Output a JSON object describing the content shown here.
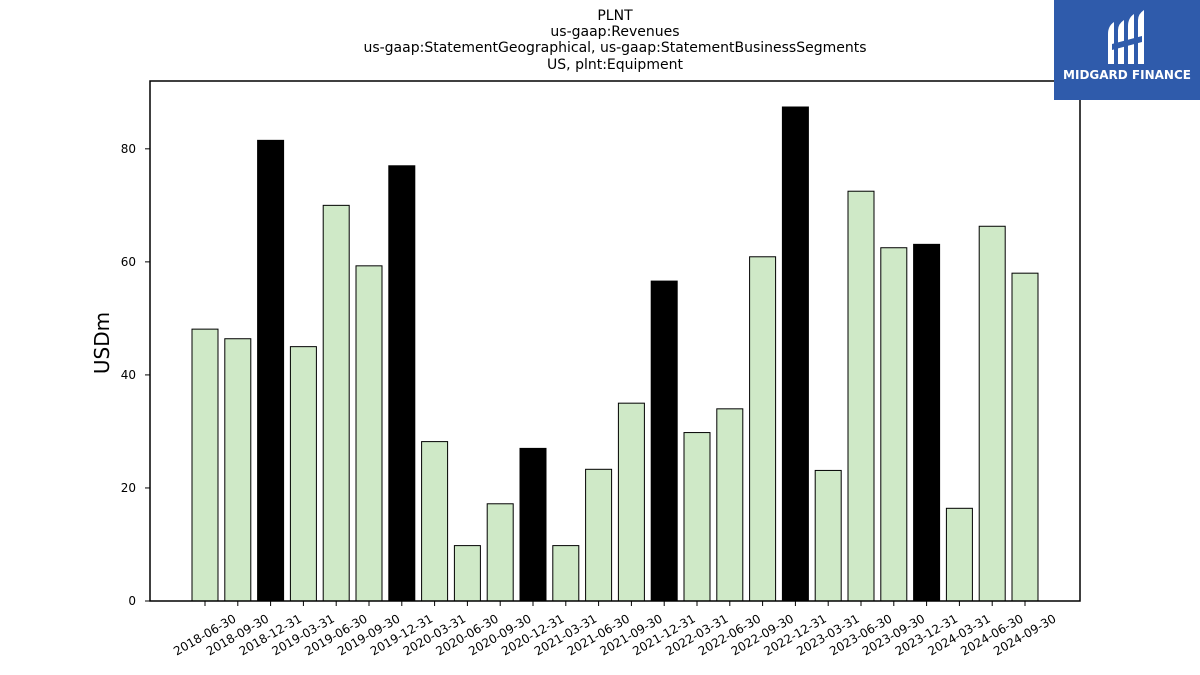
{
  "chart_data": {
    "type": "bar",
    "title_lines": [
      "PLNT",
      "us-gaap:Revenues",
      "us-gaap:StatementGeographical, us-gaap:StatementBusinessSegments",
      "US, plnt:Equipment"
    ],
    "ylabel": "USDm",
    "xlabel": "",
    "ylim": [
      0,
      92
    ],
    "yticks": [
      0,
      20,
      40,
      60,
      80
    ],
    "categories": [
      "2018-06-30",
      "2018-09-30",
      "2018-12-31",
      "2019-03-31",
      "2019-06-30",
      "2019-09-30",
      "2019-12-31",
      "2020-03-31",
      "2020-06-30",
      "2020-09-30",
      "2020-12-31",
      "2021-03-31",
      "2021-06-30",
      "2021-09-30",
      "2021-12-31",
      "2022-03-31",
      "2022-06-30",
      "2022-09-30",
      "2022-12-31",
      "2023-03-31",
      "2023-06-30",
      "2023-09-30",
      "2023-12-31",
      "2024-03-31",
      "2024-06-30",
      "2024-09-30"
    ],
    "values": [
      48.1,
      46.4,
      81.5,
      45.0,
      70.0,
      59.3,
      77.0,
      28.2,
      9.8,
      17.2,
      27.0,
      9.8,
      23.3,
      35.0,
      56.6,
      29.8,
      34.0,
      60.9,
      87.4,
      23.1,
      72.5,
      62.5,
      63.1,
      16.4,
      66.3,
      58.0
    ],
    "grid": false,
    "colors": {
      "default_bar": "#cfe9c7",
      "year_end_bar": "#000000",
      "bar_edge": "#000000"
    }
  },
  "logo": {
    "text": "MIDGARD FINANCE",
    "background": "#2f5bab"
  }
}
